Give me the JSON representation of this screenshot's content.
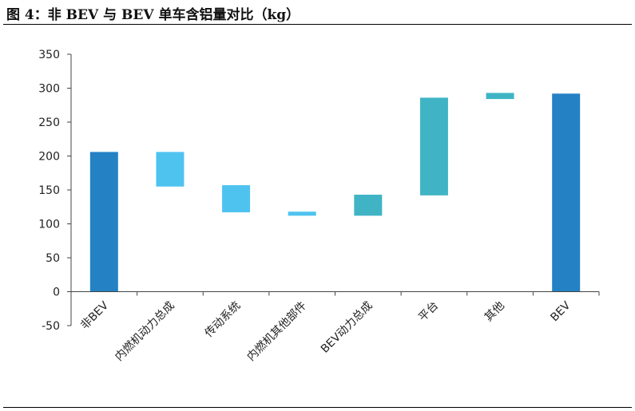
{
  "figure": {
    "title": "图 4：非 BEV 与 BEV 单车含铝量对比（kg）"
  },
  "chart_data": {
    "type": "bar",
    "subtype": "waterfall",
    "categories": [
      "非BEV",
      "内燃机动力总成",
      "传动系统",
      "内燃机其他部件",
      "BEV动力总成",
      "平台",
      "其他",
      "BEV"
    ],
    "bars": [
      {
        "low": 0,
        "high": 206,
        "color": "#2481c4"
      },
      {
        "low": 155,
        "high": 206,
        "color": "#4fc3f0"
      },
      {
        "low": 117,
        "high": 157,
        "color": "#4fc3f0"
      },
      {
        "low": 112,
        "high": 118,
        "color": "#4fc3f0"
      },
      {
        "low": 112,
        "high": 143,
        "color": "#40b4c4"
      },
      {
        "low": 142,
        "high": 286,
        "color": "#40b4c4"
      },
      {
        "low": 284,
        "high": 293,
        "color": "#40b4c4"
      },
      {
        "low": 0,
        "high": 292,
        "color": "#2481c4"
      }
    ],
    "yticks": [
      "-50",
      "0",
      "50",
      "100",
      "150",
      "200",
      "250",
      "300",
      "350"
    ],
    "ylim": [
      -50,
      350
    ],
    "grid": false,
    "legend": "none"
  }
}
